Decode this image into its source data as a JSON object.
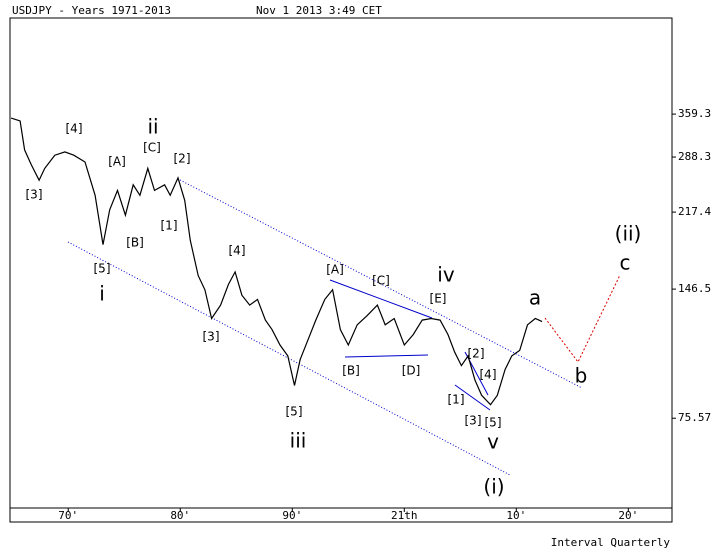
{
  "chart_data": {
    "type": "line",
    "title": "USDJPY - Years 1971-2013",
    "subtitle": "Nov 1 2013 3:49 CET",
    "footer": "Interval Quarterly",
    "x": [
      1964.9,
      1965.7,
      1966.1,
      1966.7,
      1967.4,
      1967.9,
      1968.8,
      1969.7,
      1970.5,
      1971.5,
      1972.4,
      1973.1,
      1973.7,
      1974.4,
      1975.1,
      1975.8,
      1976.4,
      1977.1,
      1977.7,
      1978.6,
      1979.1,
      1979.8,
      1980.4,
      1980.9,
      1981.6,
      1982.2,
      1982.8,
      1983.6,
      1984.3,
      1984.9,
      1985.5,
      1986.2,
      1986.9,
      1987.6,
      1988.2,
      1988.9,
      1989.6,
      1990.2,
      1990.7,
      1991.4,
      1992.1,
      1992.9,
      1993.6,
      1994.3,
      1995.0,
      1995.8,
      1996.7,
      1997.6,
      1998.3,
      1999.1,
      2000.0,
      2000.8,
      2001.6,
      2002.4,
      2003.2,
      2003.9,
      2004.5,
      2005.1,
      2005.7,
      2006.3,
      2006.9,
      2007.7,
      2008.3,
      2009.0,
      2009.6,
      2010.3,
      2011.0,
      2011.7,
      2012.3
    ],
    "values": [
      352,
      347,
      299,
      277,
      256,
      272,
      291,
      296,
      291,
      281,
      237,
      184,
      220,
      243,
      214,
      250,
      237,
      272,
      243,
      250,
      237,
      259,
      231,
      188,
      157,
      146,
      126,
      135,
      150,
      160,
      142,
      135,
      139,
      125,
      119,
      110,
      104,
      89.4,
      102,
      113,
      125,
      139,
      146,
      119,
      110,
      122,
      128,
      135,
      122,
      126,
      110,
      116,
      125,
      126,
      125,
      116,
      106,
      99,
      104,
      92,
      85,
      81,
      85,
      97,
      104,
      107,
      122,
      126,
      124
    ],
    "color": "#000000",
    "log_y": true,
    "xlim": [
      1964.8,
      2023.9
    ],
    "xticks": [
      {
        "value": 1970,
        "label": "70'"
      },
      {
        "value": 1980,
        "label": "80'"
      },
      {
        "value": 1990,
        "label": "90'"
      },
      {
        "value": 2000,
        "label": "21th"
      },
      {
        "value": 2010,
        "label": "10'"
      },
      {
        "value": 2020,
        "label": "20'"
      }
    ],
    "ylim": [
      47.7,
      588
    ],
    "yticks": [
      75.57,
      146.5,
      217.4,
      288.3,
      359.3
    ],
    "annotations": [
      {
        "text": "[3]",
        "color": "#2e8b2e"
      },
      {
        "text": "[4]",
        "color": "#2e8b2e"
      },
      {
        "text": "ii",
        "color": "#dd0000"
      },
      {
        "text": "[C]",
        "color": "#2e8b2e"
      },
      {
        "text": "[2]",
        "color": "#2e8b2e"
      },
      {
        "text": "[A]",
        "color": "#2e8b2e"
      },
      {
        "text": "[1]",
        "color": "#2e8b2e"
      },
      {
        "text": "[B]",
        "color": "#2e8b2e"
      },
      {
        "text": "[5]",
        "color": "#2e8b2e"
      },
      {
        "text": "i",
        "color": "#dd0000"
      },
      {
        "text": "[4]",
        "color": "#2e8b2e"
      },
      {
        "text": "[3]",
        "color": "#2e8b2e"
      },
      {
        "text": "[5]",
        "color": "#2e8b2e"
      },
      {
        "text": "iii",
        "color": "#dd0000"
      },
      {
        "text": "[A]",
        "color": "#2e8b2e"
      },
      {
        "text": "[C]",
        "color": "#2e8b2e"
      },
      {
        "text": "iv",
        "color": "#dd0000"
      },
      {
        "text": "[E]",
        "color": "#2e8b2e"
      },
      {
        "text": "[B]",
        "color": "#2e8b2e"
      },
      {
        "text": "[D]",
        "color": "#2e8b2e"
      },
      {
        "text": "[2]",
        "color": "#2e8b2e"
      },
      {
        "text": "[4]",
        "color": "#2e8b2e"
      },
      {
        "text": "[1]",
        "color": "#2e8b2e"
      },
      {
        "text": "[3]",
        "color": "#2e8b2e"
      },
      {
        "text": "[5]",
        "color": "#2e8b2e"
      },
      {
        "text": "v",
        "color": "#dd0000"
      },
      {
        "text": "(i)",
        "color": "#0000bb"
      },
      {
        "text": "a",
        "color": "#dd0000"
      },
      {
        "text": "b",
        "color": "#dd0000"
      },
      {
        "text": "c",
        "color": "#dd0000"
      },
      {
        "text": "(ii)",
        "color": "#0000bb"
      }
    ]
  }
}
